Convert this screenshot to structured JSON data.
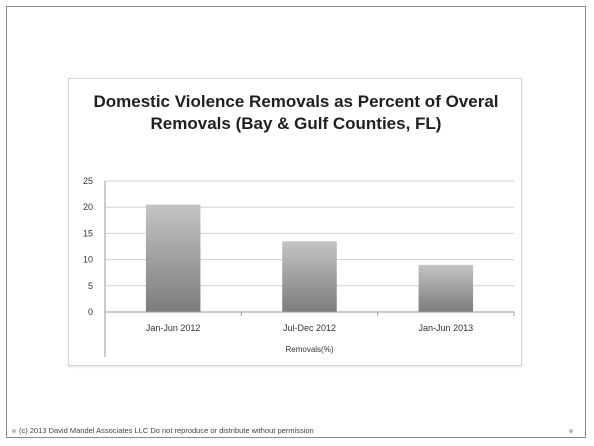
{
  "chart_data": {
    "type": "bar",
    "title": "Domestic Violence Removals as Percent of Overal Removals (Bay & Gulf Counties, FL)",
    "categories": [
      "Jan-Jun 2012",
      "Jul-Dec 2012",
      "Jan-Jun 2013"
    ],
    "series": [
      {
        "name": "",
        "values": [
          20.5,
          13.5,
          9
        ]
      }
    ],
    "xlabel": "Removals(%)",
    "ylabel": "",
    "ylim": [
      0,
      25
    ],
    "yticks": [
      0,
      5,
      10,
      15,
      20,
      25
    ],
    "grid": true,
    "bar_color": "#9a9a9a"
  },
  "footer": {
    "text": "(c) 2013 David Mandel Associates LLC   Do not reproduce or distribute without permission"
  }
}
